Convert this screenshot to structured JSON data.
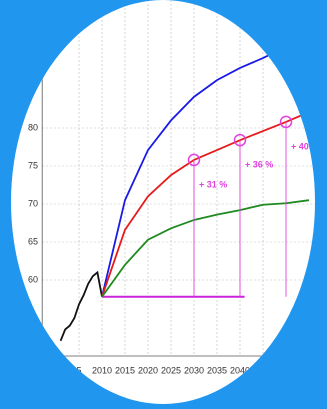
{
  "chart_data": {
    "type": "line",
    "xlim": [
      1997,
      2055
    ],
    "ylim": [
      50,
      95
    ],
    "xticks": [
      {
        "value": 2005,
        "label": "5"
      },
      2010,
      2015,
      2020,
      2025,
      2030,
      2035,
      2040,
      {
        "value": 2045,
        "label": "20"
      }
    ],
    "yticks": [
      60,
      65,
      70,
      75,
      80
    ],
    "grid": true,
    "baseline": {
      "x": [
        2010,
        2041
      ],
      "value": 57.8,
      "color": "#cc22dd"
    },
    "series": [
      {
        "color": "#111111",
        "x": [
          2001,
          2002,
          2003,
          2004,
          2005,
          2006,
          2007,
          2008,
          2009,
          2010
        ],
        "values": [
          52,
          53.5,
          54,
          55,
          56.8,
          58,
          59.5,
          60.5,
          61,
          57.8
        ]
      },
      {
        "color": "#1a1ae6",
        "x": [
          2010,
          2015,
          2020,
          2025,
          2030,
          2035,
          2040,
          2045,
          2050
        ],
        "values": [
          57.8,
          70.5,
          77.1,
          81,
          84.1,
          86.3,
          87.9,
          89.2,
          90.7
        ]
      },
      {
        "color": "#e61a1a",
        "x": [
          2010,
          2015,
          2020,
          2025,
          2030,
          2035,
          2040,
          2045,
          2050,
          2055
        ],
        "values": [
          57.8,
          66.6,
          71,
          73.8,
          75.8,
          77.1,
          78.4,
          79.6,
          80.8,
          82.1
        ]
      },
      {
        "color": "#1f8a1f",
        "x": [
          2010,
          2015,
          2020,
          2025,
          2030,
          2035,
          2040,
          2045,
          2050,
          2055
        ],
        "values": [
          57.8,
          62,
          65.3,
          66.8,
          67.9,
          68.6,
          69.2,
          69.9,
          70.1,
          70.5
        ]
      }
    ],
    "annotations": [
      {
        "x": 2030,
        "y": 75.8,
        "label": "+ 31 %"
      },
      {
        "x": 2040,
        "y": 78.4,
        "label": "+ 36 %"
      },
      {
        "x": 2050,
        "y": 80.8,
        "label": "+ 40 %"
      }
    ],
    "annotation_color": "#e040e0"
  }
}
